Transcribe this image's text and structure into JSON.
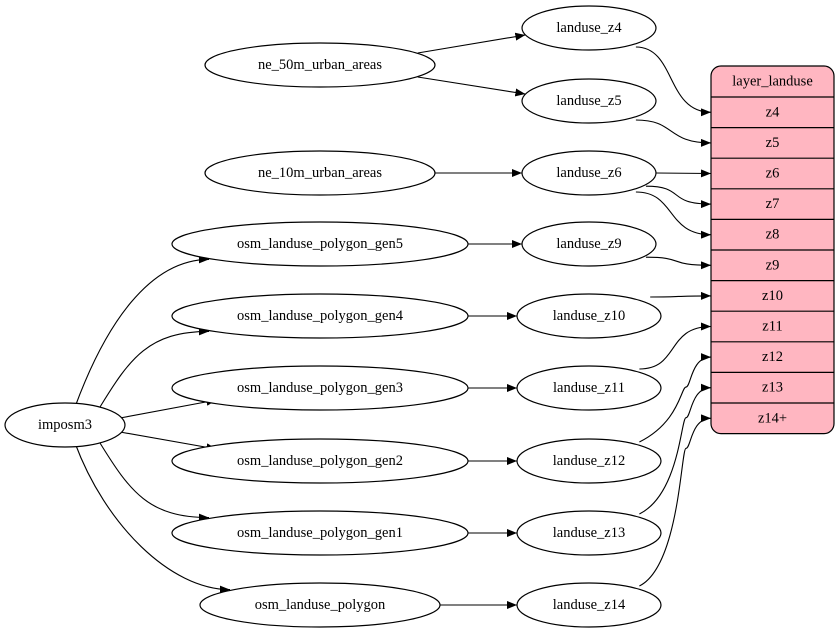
{
  "nodes": [
    {
      "id": "ne50",
      "label": "ne_50m_urban_areas"
    },
    {
      "id": "ne10",
      "label": "ne_10m_urban_areas"
    },
    {
      "id": "gen5",
      "label": "osm_landuse_polygon_gen5"
    },
    {
      "id": "gen4",
      "label": "osm_landuse_polygon_gen4"
    },
    {
      "id": "gen3",
      "label": "osm_landuse_polygon_gen3"
    },
    {
      "id": "gen2",
      "label": "osm_landuse_polygon_gen2"
    },
    {
      "id": "gen1",
      "label": "osm_landuse_polygon_gen1"
    },
    {
      "id": "poly",
      "label": "osm_landuse_polygon"
    },
    {
      "id": "imposm3",
      "label": "imposm3"
    },
    {
      "id": "lz4",
      "label": "landuse_z4"
    },
    {
      "id": "lz5",
      "label": "landuse_z5"
    },
    {
      "id": "lz6",
      "label": "landuse_z6"
    },
    {
      "id": "lz9",
      "label": "landuse_z9"
    },
    {
      "id": "lz10",
      "label": "landuse_z10"
    },
    {
      "id": "lz11",
      "label": "landuse_z11"
    },
    {
      "id": "lz12",
      "label": "landuse_z12"
    },
    {
      "id": "lz13",
      "label": "landuse_z13"
    },
    {
      "id": "lz14",
      "label": "landuse_z14"
    }
  ],
  "record": {
    "title": "layer_landuse",
    "fill": "#ffb6c1",
    "ports": [
      "z4",
      "z5",
      "z6",
      "z7",
      "z8",
      "z9",
      "z10",
      "z11",
      "z12",
      "z13",
      "z14+"
    ]
  },
  "edges": [
    [
      "ne50",
      "lz4"
    ],
    [
      "ne50",
      "lz5"
    ],
    [
      "ne10",
      "lz6"
    ],
    [
      "imposm3",
      "gen5"
    ],
    [
      "imposm3",
      "gen4"
    ],
    [
      "imposm3",
      "gen3"
    ],
    [
      "imposm3",
      "gen2"
    ],
    [
      "imposm3",
      "gen1"
    ],
    [
      "imposm3",
      "poly"
    ],
    [
      "gen5",
      "lz9"
    ],
    [
      "gen4",
      "lz10"
    ],
    [
      "gen3",
      "lz11"
    ],
    [
      "gen2",
      "lz12"
    ],
    [
      "gen1",
      "lz13"
    ],
    [
      "poly",
      "lz14"
    ],
    [
      "lz4",
      "z4"
    ],
    [
      "lz5",
      "z5"
    ],
    [
      "lz6",
      "z6"
    ],
    [
      "lz6",
      "z7"
    ],
    [
      "lz6",
      "z8"
    ],
    [
      "lz9",
      "z9"
    ],
    [
      "lz10",
      "z10"
    ],
    [
      "lz11",
      "z11"
    ],
    [
      "lz12",
      "z12"
    ],
    [
      "lz13",
      "z13"
    ],
    [
      "lz14",
      "z14+"
    ]
  ]
}
